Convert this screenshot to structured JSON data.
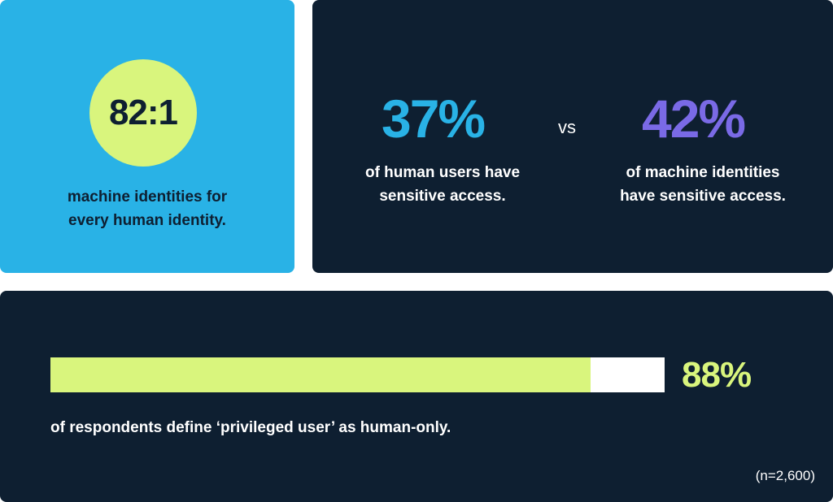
{
  "colors": {
    "navy": "#0e1f31",
    "sky_blue": "#29b2e6",
    "lime": "#d9f57d",
    "purple": "#7a6ae6",
    "white": "#ffffff"
  },
  "ratio_card": {
    "value": "82:1",
    "caption_line1": "machine identities for",
    "caption_line2": "every human identity."
  },
  "comparison_card": {
    "human": {
      "value": "37%",
      "caption_line1": "of human users have",
      "caption_line2": "sensitive access."
    },
    "separator": "vs",
    "machine": {
      "value": "42%",
      "caption_line1": "of machine identities",
      "caption_line2": "have sensitive access."
    }
  },
  "bar_card": {
    "value_label": "88%",
    "fill_fraction": 0.88,
    "caption": "of respondents define ‘privileged user’ as human-only.",
    "sample_note": "(n=2,600)"
  }
}
